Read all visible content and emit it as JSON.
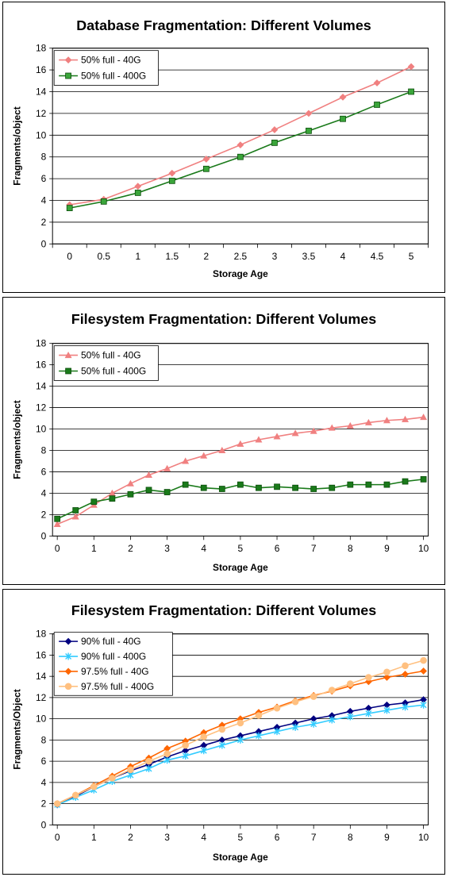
{
  "chart_data": [
    {
      "type": "line",
      "title": "Database Fragmentation: Different Volumes",
      "xlabel": "Storage Age",
      "ylabel": "Fragments/object",
      "xlim": [
        0,
        5
      ],
      "ylim": [
        0,
        18
      ],
      "y_ticks": [
        "0",
        "2",
        "4",
        "6",
        "8",
        "10",
        "12",
        "14",
        "16",
        "18"
      ],
      "x_ticks": [
        "0",
        "0.5",
        "1",
        "1.5",
        "2",
        "2.5",
        "3",
        "3.5",
        "4",
        "4.5",
        "5"
      ],
      "x_axis_mode": "category",
      "grid": true,
      "legend_position": "top-left",
      "series": [
        {
          "name": "50% full - 40G",
          "color": "#f08080",
          "marker": "diamond",
          "x": [
            0,
            0.5,
            1,
            1.5,
            2,
            2.5,
            3,
            3.5,
            4,
            4.5,
            5
          ],
          "values": [
            3.6,
            4.1,
            5.3,
            6.5,
            7.8,
            9.1,
            10.5,
            12.0,
            13.5,
            14.8,
            16.3
          ]
        },
        {
          "name": "50% full - 400G",
          "color": "#1a7a1a",
          "fill": "#3aa53a",
          "marker": "square",
          "x": [
            0,
            0.5,
            1,
            1.5,
            2,
            2.5,
            3,
            3.5,
            4,
            4.5,
            5
          ],
          "values": [
            3.3,
            3.9,
            4.7,
            5.8,
            6.9,
            8.0,
            9.3,
            10.4,
            11.5,
            12.8,
            14.0
          ]
        }
      ]
    },
    {
      "type": "line",
      "title": "Filesystem Fragmentation: Different Volumes",
      "xlabel": "Storage Age",
      "ylabel": "Fragments/object",
      "xlim": [
        0,
        10
      ],
      "ylim": [
        0,
        18
      ],
      "y_ticks": [
        "0",
        "2",
        "4",
        "6",
        "8",
        "10",
        "12",
        "14",
        "16",
        "18"
      ],
      "x_ticks": [
        "0",
        "1",
        "2",
        "3",
        "4",
        "5",
        "6",
        "7",
        "8",
        "9",
        "10"
      ],
      "x_axis_mode": "value",
      "grid": true,
      "legend_position": "top-left",
      "series": [
        {
          "name": "50% full - 40G",
          "color": "#f08080",
          "marker": "triangle",
          "x": [
            0,
            0.5,
            1,
            1.5,
            2,
            2.5,
            3,
            3.5,
            4,
            4.5,
            5,
            5.5,
            6,
            6.5,
            7,
            7.5,
            8,
            8.5,
            9,
            9.5,
            10
          ],
          "values": [
            1.1,
            1.8,
            2.9,
            4.0,
            4.9,
            5.7,
            6.3,
            7.0,
            7.5,
            8.0,
            8.6,
            9.0,
            9.3,
            9.6,
            9.8,
            10.1,
            10.3,
            10.6,
            10.8,
            10.9,
            11.1
          ]
        },
        {
          "name": "50% full - 400G",
          "color": "#1a7a1a",
          "fill": "#1a7a1a",
          "marker": "square",
          "x": [
            0,
            0.5,
            1,
            1.5,
            2,
            2.5,
            3,
            3.5,
            4,
            4.5,
            5,
            5.5,
            6,
            6.5,
            7,
            7.5,
            8,
            8.5,
            9,
            9.5,
            10
          ],
          "values": [
            1.6,
            2.4,
            3.2,
            3.5,
            3.9,
            4.3,
            4.1,
            4.8,
            4.5,
            4.4,
            4.8,
            4.5,
            4.6,
            4.5,
            4.4,
            4.5,
            4.8,
            4.8,
            4.8,
            5.1,
            5.3
          ]
        }
      ]
    },
    {
      "type": "line",
      "title": "Filesystem Fragmentation: Different Volumes",
      "xlabel": "Storage Age",
      "ylabel": "Fragments/Object",
      "xlim": [
        0,
        10
      ],
      "ylim": [
        0,
        18
      ],
      "y_ticks": [
        "0",
        "2",
        "4",
        "6",
        "8",
        "10",
        "12",
        "14",
        "16",
        "18"
      ],
      "x_ticks": [
        "0",
        "1",
        "2",
        "3",
        "4",
        "5",
        "6",
        "7",
        "8",
        "9",
        "10"
      ],
      "x_axis_mode": "value",
      "grid": true,
      "legend_position": "top-left",
      "series": [
        {
          "name": "90% full - 40G",
          "color": "#000080",
          "marker": "diamond",
          "x": [
            0,
            0.5,
            1,
            1.5,
            2,
            2.5,
            3,
            3.5,
            4,
            4.5,
            5,
            5.5,
            6,
            6.5,
            7,
            7.5,
            8,
            8.5,
            9,
            9.5,
            10
          ],
          "values": [
            1.9,
            2.7,
            3.6,
            4.4,
            5.1,
            5.7,
            6.4,
            7.0,
            7.5,
            8.0,
            8.4,
            8.8,
            9.2,
            9.6,
            10.0,
            10.3,
            10.7,
            11.0,
            11.3,
            11.5,
            11.8
          ]
        },
        {
          "name": "90% full - 400G",
          "color": "#33ccff",
          "marker": "x",
          "x": [
            0,
            0.5,
            1,
            1.5,
            2,
            2.5,
            3,
            3.5,
            4,
            4.5,
            5,
            5.5,
            6,
            6.5,
            7,
            7.5,
            8,
            8.5,
            9,
            9.5,
            10
          ],
          "values": [
            1.9,
            2.6,
            3.3,
            4.1,
            4.7,
            5.3,
            6.1,
            6.5,
            7.0,
            7.5,
            8.0,
            8.4,
            8.8,
            9.2,
            9.5,
            9.9,
            10.2,
            10.5,
            10.8,
            11.1,
            11.3
          ]
        },
        {
          "name": "97.5% full - 40G",
          "color": "#ff6600",
          "marker": "diamond",
          "x": [
            0,
            0.5,
            1,
            1.5,
            2,
            2.5,
            3,
            3.5,
            4,
            4.5,
            5,
            5.5,
            6,
            6.5,
            7,
            7.5,
            8,
            8.5,
            9,
            9.5,
            10
          ],
          "values": [
            2.0,
            2.8,
            3.7,
            4.6,
            5.5,
            6.3,
            7.2,
            7.9,
            8.7,
            9.4,
            10.0,
            10.6,
            11.1,
            11.7,
            12.2,
            12.6,
            13.1,
            13.5,
            13.9,
            14.2,
            14.5
          ]
        },
        {
          "name": "97.5% full - 400G",
          "color": "#ffc080",
          "marker": "circle",
          "x": [
            0,
            0.5,
            1,
            1.5,
            2,
            2.5,
            3,
            3.5,
            4,
            4.5,
            5,
            5.5,
            6,
            6.5,
            7,
            7.5,
            8,
            8.5,
            9,
            9.5,
            10
          ],
          "values": [
            2.0,
            2.8,
            3.6,
            4.4,
            5.2,
            6.0,
            6.7,
            7.5,
            8.3,
            9.0,
            9.6,
            10.3,
            11.0,
            11.6,
            12.1,
            12.7,
            13.3,
            13.9,
            14.4,
            15.0,
            15.5
          ]
        }
      ]
    }
  ]
}
